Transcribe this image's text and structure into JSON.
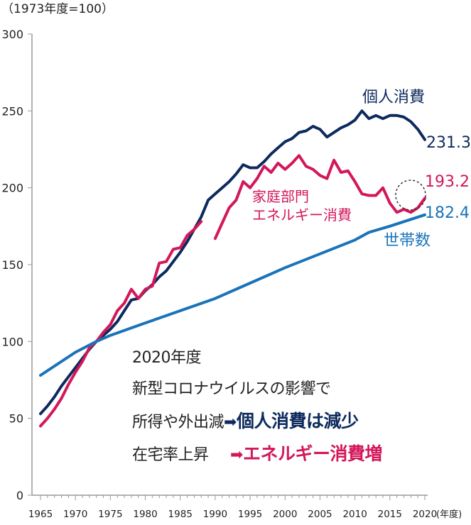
{
  "chart_data": {
    "type": "line",
    "title": "（1973年度=100）",
    "xlabel": "(年度)",
    "ylabel": "",
    "xlim": [
      1965,
      2020
    ],
    "ylim": [
      0,
      300
    ],
    "yticks": [
      0,
      50,
      100,
      150,
      200,
      250,
      300
    ],
    "xticks": [
      1965,
      1970,
      1975,
      1980,
      1985,
      1990,
      1995,
      2000,
      2005,
      2010,
      2015,
      2020
    ],
    "grid": false,
    "series": [
      {
        "name": "個人消費",
        "color": "#0d2a5e",
        "end_label": "231.3",
        "x": [
          1965,
          1966,
          1967,
          1968,
          1969,
          1970,
          1971,
          1972,
          1973,
          1974,
          1975,
          1976,
          1977,
          1978,
          1979,
          1980,
          1981,
          1982,
          1983,
          1984,
          1985,
          1986,
          1987,
          1988,
          1989,
          1990,
          1991,
          1992,
          1993,
          1994,
          1995,
          1996,
          1997,
          1998,
          1999,
          2000,
          2001,
          2002,
          2003,
          2004,
          2005,
          2006,
          2007,
          2008,
          2009,
          2010,
          2011,
          2012,
          2013,
          2014,
          2015,
          2016,
          2017,
          2018,
          2019,
          2020
        ],
        "values": [
          53,
          58,
          64,
          71,
          77,
          83,
          89,
          95,
          100,
          104,
          108,
          113,
          120,
          127,
          128,
          133,
          137,
          142,
          146,
          152,
          158,
          165,
          173,
          181,
          192,
          196,
          200,
          204,
          209,
          215,
          213,
          213,
          217,
          222,
          226,
          230,
          232,
          236,
          237,
          240,
          238,
          233,
          236,
          239,
          241,
          244,
          250,
          245,
          247,
          245,
          247,
          247,
          246,
          243,
          238,
          231.3
        ]
      },
      {
        "name": "家庭部門エネルギー消費",
        "color": "#d3175b",
        "end_label": "193.2",
        "x": [
          1965,
          1966,
          1967,
          1968,
          1969,
          1970,
          1971,
          1972,
          1973,
          1974,
          1975,
          1976,
          1977,
          1978,
          1979,
          1980,
          1981,
          1982,
          1983,
          1984,
          1985,
          1986,
          1987,
          1988,
          1989,
          1990,
          1991,
          1992,
          1993,
          1994,
          1995,
          1996,
          1997,
          1998,
          1999,
          2000,
          2001,
          2002,
          2003,
          2004,
          2005,
          2006,
          2007,
          2008,
          2009,
          2010,
          2011,
          2012,
          2013,
          2014,
          2015,
          2016,
          2017,
          2018,
          2019,
          2020
        ],
        "values": [
          45,
          50,
          56,
          63,
          72,
          80,
          87,
          96,
          100,
          106,
          111,
          120,
          125,
          134,
          128,
          134,
          136,
          151,
          152,
          160,
          161,
          169,
          173,
          178,
          null,
          167,
          177,
          187,
          192,
          204,
          200,
          206,
          214,
          210,
          216,
          212,
          216,
          221,
          214,
          212,
          208,
          206,
          218,
          210,
          211,
          204,
          196,
          195,
          195,
          200,
          190,
          184,
          186,
          184,
          187,
          193.2
        ]
      },
      {
        "name": "世帯数",
        "color": "#1a73b8",
        "end_label": "182.4",
        "x": [
          1965,
          1970,
          1973,
          1975,
          1980,
          1985,
          1990,
          1995,
          2000,
          2005,
          2010,
          2012,
          2015,
          2020
        ],
        "values": [
          78,
          93,
          100,
          104,
          112,
          120,
          128,
          138,
          148,
          157,
          166,
          171,
          175,
          182.4
        ]
      }
    ]
  },
  "annotation": {
    "line1": "2020年度",
    "line2": "新型コロナウイルスの影響で",
    "line3_a": "所得や外出減",
    "line3_arrow": "➡",
    "line3_b": "個人消費は減少",
    "line4_a": "在宅率上昇",
    "line4_arrow": "➡",
    "line4_b": "エネルギー消費増"
  }
}
